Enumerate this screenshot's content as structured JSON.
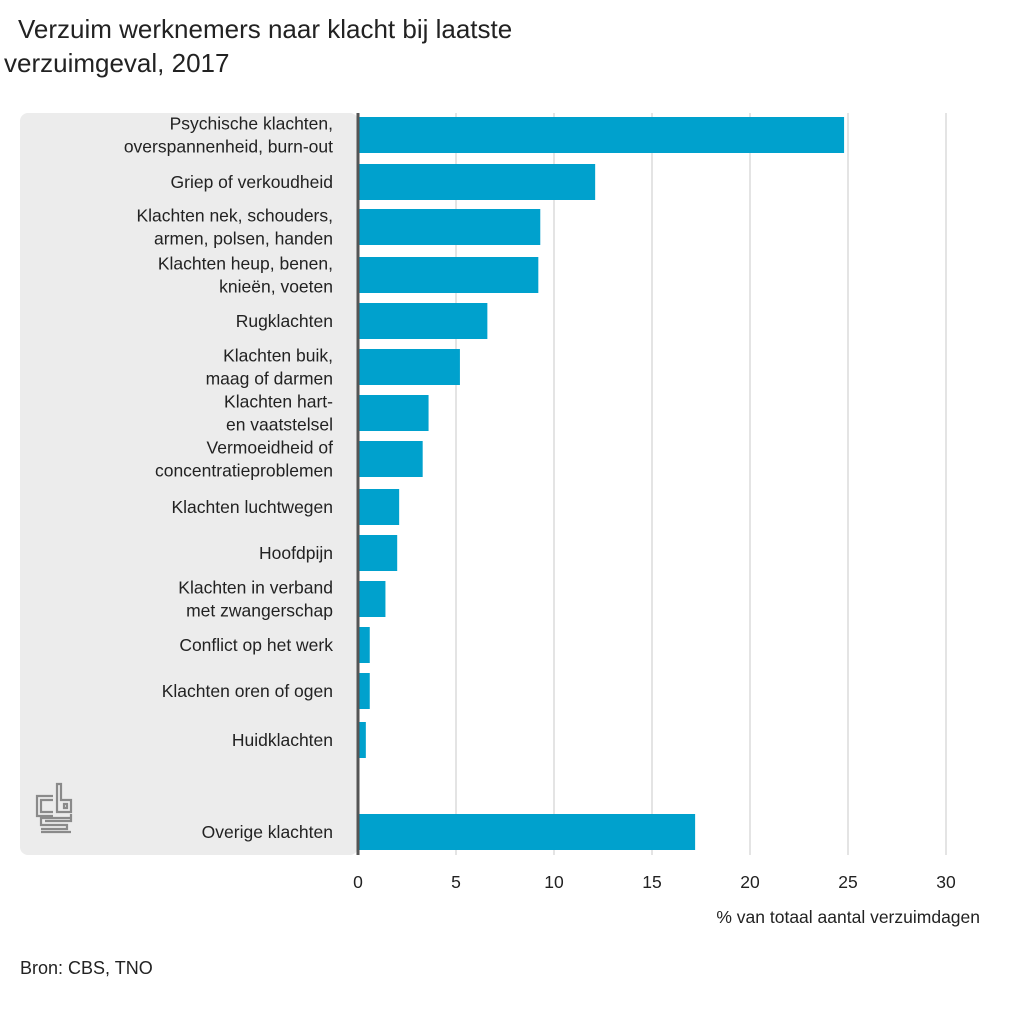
{
  "title_lines": [
    "Verzuim werknemers naar klacht bij laatste",
    "verzuimgeval, 2017"
  ],
  "source": "Bron: CBS, TNO",
  "logo_text": "cbs",
  "colors": {
    "bar": "#00a1cd",
    "panel": "#ececec",
    "grid": "#c8c8c8",
    "axis": "#555555",
    "text": "#222222"
  },
  "chart_data": {
    "type": "bar",
    "orientation": "horizontal",
    "title": "Verzuim werknemers naar klacht bij laatste verzuimgeval, 2017",
    "xlabel": "% van totaal aantal verzuimdagen",
    "ylabel": "",
    "xlim": [
      0,
      30
    ],
    "xticks": [
      "0",
      "5",
      "10",
      "15",
      "20",
      "25",
      "30"
    ],
    "xtick_values": [
      0,
      5,
      10,
      15,
      20,
      25,
      30
    ],
    "grid": true,
    "categories": [
      [
        "Psychische klachten,",
        "overspannenheid, burn-out"
      ],
      [
        "Griep of verkoudheid"
      ],
      [
        "Klachten nek, schouders,",
        "armen, polsen, handen"
      ],
      [
        "Klachten heup, benen,",
        "knieën, voeten"
      ],
      [
        "Rugklachten"
      ],
      [
        "Klachten buik,",
        "maag of darmen"
      ],
      [
        "Klachten hart-",
        "en vaatstelsel"
      ],
      [
        "Vermoeidheid of",
        "concentratieproblemen"
      ],
      [
        "Klachten luchtwegen"
      ],
      [
        "Hoofdpijn"
      ],
      [
        "Klachten in verband",
        "met zwangerschap"
      ],
      [
        "Conflict op het werk"
      ],
      [
        "Klachten oren of ogen"
      ],
      [
        "Huidklachten"
      ],
      [
        "Overige klachten"
      ]
    ],
    "values": [
      24.8,
      12.1,
      9.3,
      9.2,
      6.6,
      5.2,
      3.6,
      3.3,
      2.1,
      2.0,
      1.4,
      0.6,
      0.6,
      0.4,
      17.2
    ]
  }
}
